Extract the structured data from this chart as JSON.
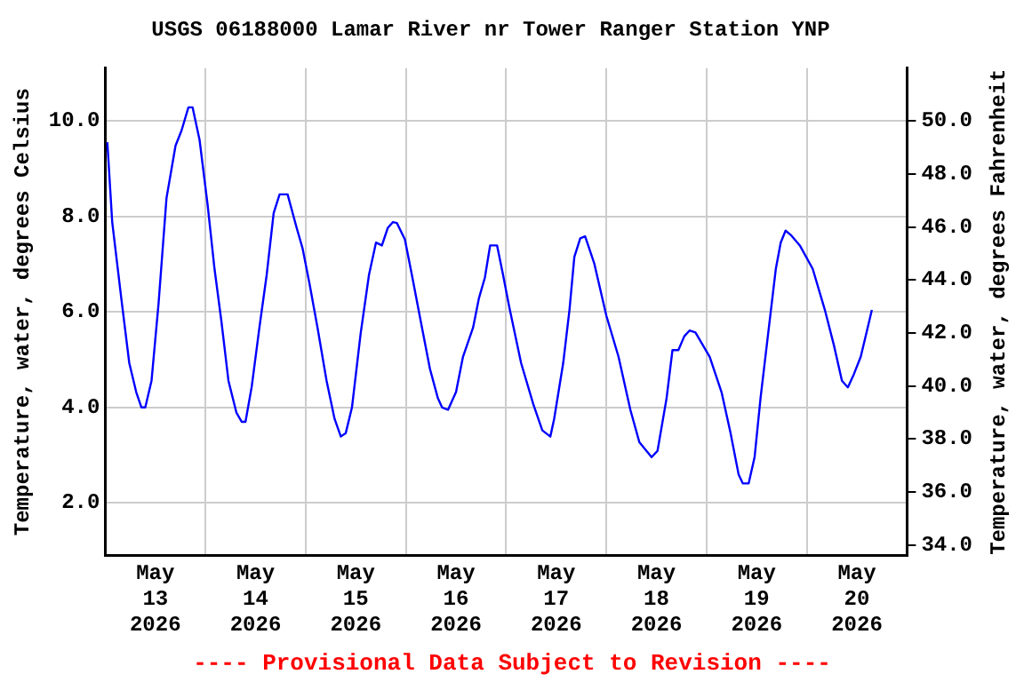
{
  "chart_data": {
    "type": "line",
    "title": "USGS 06188000 Lamar River nr Tower Ranger Station YNP",
    "ylabel": "Temperature, water, degrees Celsius",
    "y2label": "Temperature, water, degrees Fahrenheit",
    "annotations": [
      "---- Provisional Data Subject to Revision ----"
    ],
    "x": [
      "2026-05-13T00:30",
      "2026-05-13T01:40",
      "2026-05-13T03:50",
      "2026-05-13T05:45",
      "2026-05-13T07:25",
      "2026-05-13T08:40",
      "2026-05-13T09:35",
      "2026-05-13T11:05",
      "2026-05-13T12:45",
      "2026-05-13T14:40",
      "2026-05-13T16:50",
      "2026-05-13T18:15",
      "2026-05-13T19:55",
      "2026-05-13T20:55",
      "2026-05-13T22:35",
      "2026-05-14T00:30",
      "2026-05-14T02:10",
      "2026-05-14T03:50",
      "2026-05-14T05:30",
      "2026-05-14T07:25",
      "2026-05-14T08:40",
      "2026-05-14T09:35",
      "2026-05-14T11:05",
      "2026-05-14T12:55",
      "2026-05-14T14:40",
      "2026-05-14T16:20",
      "2026-05-14T17:45",
      "2026-05-14T19:40",
      "2026-05-14T21:50",
      "2026-05-14T23:15",
      "2026-05-15T00:55",
      "2026-05-15T02:50",
      "2026-05-15T05:00",
      "2026-05-15T06:55",
      "2026-05-15T08:25",
      "2026-05-15T09:35",
      "2026-05-15T11:05",
      "2026-05-15T13:10",
      "2026-05-15T15:10",
      "2026-05-15T16:50",
      "2026-05-15T18:15",
      "2026-05-15T19:40",
      "2026-05-15T20:55",
      "2026-05-15T21:50",
      "2026-05-15T23:45",
      "2026-05-16T01:25",
      "2026-05-16T03:35",
      "2026-05-16T05:45",
      "2026-05-16T07:40",
      "2026-05-16T08:40",
      "2026-05-16T10:05",
      "2026-05-16T12:00",
      "2026-05-16T13:40",
      "2026-05-16T16:05",
      "2026-05-16T17:30",
      "2026-05-16T18:55",
      "2026-05-16T20:10",
      "2026-05-16T21:50",
      "2026-05-16T23:15",
      "2026-05-17T00:45",
      "2026-05-17T03:35",
      "2026-05-17T06:30",
      "2026-05-17T08:40",
      "2026-05-17T10:35",
      "2026-05-17T11:30",
      "2026-05-17T13:40",
      "2026-05-17T15:10",
      "2026-05-17T16:20",
      "2026-05-17T17:45",
      "2026-05-17T18:55",
      "2026-05-17T21:05",
      "2026-05-18T00:00",
      "2026-05-18T02:55",
      "2026-05-18T05:45",
      "2026-05-18T07:55",
      "2026-05-18T10:50",
      "2026-05-18T12:15",
      "2026-05-18T14:25",
      "2026-05-18T15:50",
      "2026-05-18T17:15",
      "2026-05-18T18:40",
      "2026-05-18T19:55",
      "2026-05-18T21:20",
      "2026-05-19T00:45",
      "2026-05-19T03:35",
      "2026-05-19T05:45",
      "2026-05-19T07:40",
      "2026-05-19T08:40",
      "2026-05-19T10:05",
      "2026-05-19T11:30",
      "2026-05-19T12:55",
      "2026-05-19T14:55",
      "2026-05-19T16:35",
      "2026-05-19T17:45",
      "2026-05-19T18:55",
      "2026-05-19T20:10",
      "2026-05-19T22:20",
      "2026-05-20T01:25",
      "2026-05-20T04:20",
      "2026-05-20T06:30",
      "2026-05-20T08:25",
      "2026-05-20T09:50",
      "2026-05-20T11:15",
      "2026-05-20T12:55",
      "2026-05-20T14:25",
      "2026-05-20T15:35"
    ],
    "series": [
      {
        "color": "#0000ff",
        "values": [
          9.55,
          7.88,
          6.29,
          4.93,
          4.32,
          4.0,
          4.0,
          4.56,
          6.16,
          8.38,
          9.48,
          9.79,
          10.28,
          10.28,
          9.6,
          8.25,
          6.9,
          5.79,
          4.56,
          3.89,
          3.7,
          3.7,
          4.44,
          5.67,
          6.78,
          8.07,
          8.46,
          8.46,
          7.76,
          7.33,
          6.59,
          5.67,
          4.56,
          3.76,
          3.39,
          3.46,
          4.0,
          5.55,
          6.78,
          7.45,
          7.39,
          7.76,
          7.88,
          7.86,
          7.52,
          6.78,
          5.79,
          4.81,
          4.19,
          4.0,
          3.95,
          4.32,
          5.06,
          5.67,
          6.29,
          6.72,
          7.39,
          7.39,
          6.78,
          6.1,
          4.93,
          4.07,
          3.52,
          3.39,
          3.76,
          4.93,
          6.04,
          7.15,
          7.54,
          7.58,
          7.02,
          5.92,
          5.06,
          3.95,
          3.27,
          2.96,
          3.09,
          4.19,
          5.2,
          5.2,
          5.49,
          5.61,
          5.57,
          5.06,
          4.32,
          3.46,
          2.6,
          2.41,
          2.41,
          2.96,
          4.19,
          5.67,
          6.9,
          7.45,
          7.7,
          7.61,
          7.39,
          6.9,
          6.04,
          5.3,
          4.56,
          4.42,
          4.69,
          5.06,
          5.61,
          6.04
        ]
      }
    ],
    "xlim": [
      "2026-05-13T00:00",
      "2026-05-21T00:00"
    ],
    "xticks": [
      {
        "value": "2026-05-13T12:00",
        "label": "May 13 2026"
      },
      {
        "value": "2026-05-14T00:00",
        "label": null
      },
      {
        "value": "2026-05-14T12:00",
        "label": "May 14 2026"
      },
      {
        "value": "2026-05-15T00:00",
        "label": null
      },
      {
        "value": "2026-05-15T12:00",
        "label": "May 15 2026"
      },
      {
        "value": "2026-05-16T00:00",
        "label": null
      },
      {
        "value": "2026-05-16T12:00",
        "label": "May 16 2026"
      },
      {
        "value": "2026-05-17T00:00",
        "label": null
      },
      {
        "value": "2026-05-17T12:00",
        "label": "May 17 2026"
      },
      {
        "value": "2026-05-18T00:00",
        "label": null
      },
      {
        "value": "2026-05-18T12:00",
        "label": "May 18 2026"
      },
      {
        "value": "2026-05-19T00:00",
        "label": null
      },
      {
        "value": "2026-05-19T12:00",
        "label": "May 19 2026"
      },
      {
        "value": "2026-05-20T00:00",
        "label": null
      },
      {
        "value": "2026-05-20T12:00",
        "label": "May 20 2026"
      }
    ],
    "ylim": [
      0.9,
      11.1
    ],
    "yticks": [
      {
        "value": 2,
        "label": "2.0"
      },
      {
        "value": 4,
        "label": "4.0"
      },
      {
        "value": 6,
        "label": "6.0"
      },
      {
        "value": 8,
        "label": "8.0"
      },
      {
        "value": 10,
        "label": "10.0"
      }
    ],
    "y2lim": [
      33.6,
      52.0
    ],
    "y2ticks": [
      {
        "value": 34,
        "label": "34.0"
      },
      {
        "value": 36,
        "label": "36.0"
      },
      {
        "value": 38,
        "label": "38.0"
      },
      {
        "value": 40,
        "label": "40.0"
      },
      {
        "value": 42,
        "label": "42.0"
      },
      {
        "value": 44,
        "label": "44.0"
      },
      {
        "value": 46,
        "label": "46.0"
      },
      {
        "value": 48,
        "label": "48.0"
      },
      {
        "value": 50,
        "label": "50.0"
      }
    ],
    "grid": true
  }
}
